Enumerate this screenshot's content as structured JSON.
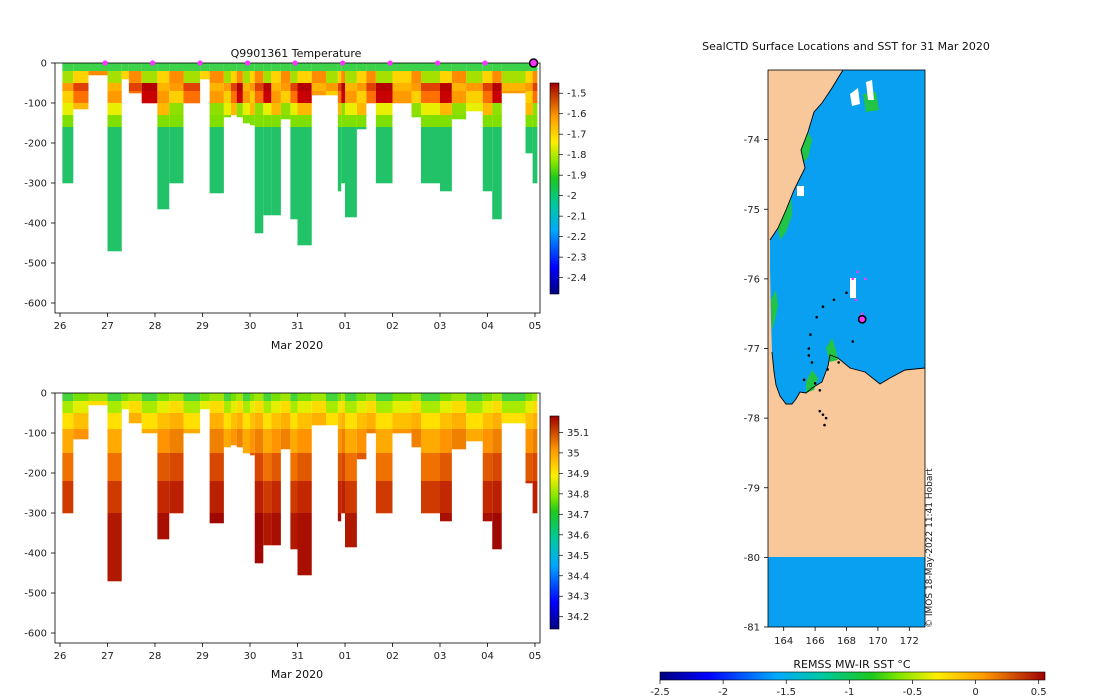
{
  "colors": {
    "land": "#f8c79a",
    "ocean": "#0aa0f2",
    "marker_magenta": "#ff33ff",
    "axis": "#000000"
  },
  "chart_data": [
    {
      "type": "heatmap",
      "title": "Q9901361  Temperature",
      "xlabel": "Mar 2020",
      "ylabel": "",
      "x_ticks": [
        "26",
        "27",
        "28",
        "29",
        "30",
        "31",
        "01",
        "02",
        "03",
        "04",
        "05"
      ],
      "y_ticks": [
        "0",
        "-100",
        "-200",
        "-300",
        "-400",
        "-500",
        "-600"
      ],
      "ylim": [
        -625,
        0
      ],
      "colorbar_ticks": [
        "-1.5",
        "-1.6",
        "-1.7",
        "-1.8",
        "-1.9",
        "-2",
        "-2.1",
        "-2.2",
        "-2.3",
        "-2.4"
      ],
      "colorbar_range": [
        -2.48,
        -1.45
      ],
      "profile_days": [
        0.05,
        0.28,
        0.6,
        1.0,
        1.3,
        1.45,
        1.72,
        2.05,
        2.3,
        2.6,
        2.95,
        3.15,
        3.45,
        3.6,
        3.72,
        3.85,
        4.0,
        4.1,
        4.28,
        4.45,
        4.65,
        4.85,
        5.0,
        5.3,
        5.6,
        5.85,
        5.92,
        6.0,
        6.25,
        6.45,
        6.65,
        7.0,
        7.4,
        7.6,
        8.0,
        8.25,
        8.55,
        8.9,
        9.1,
        9.3,
        9.8,
        9.95
      ],
      "profile_max_depths": [
        300,
        115,
        30,
        470,
        40,
        75,
        100,
        365,
        300,
        100,
        40,
        325,
        135,
        130,
        135,
        150,
        155,
        425,
        380,
        380,
        140,
        390,
        455,
        80,
        80,
        320,
        300,
        385,
        165,
        100,
        300,
        100,
        135,
        300,
        320,
        140,
        120,
        320,
        390,
        75,
        225,
        300
      ],
      "markers_x": [
        1,
        2,
        3,
        4,
        5,
        6,
        7,
        8,
        9,
        10
      ]
    },
    {
      "type": "heatmap",
      "title": "",
      "xlabel": "Mar 2020",
      "ylabel": "",
      "x_ticks": [
        "26",
        "27",
        "28",
        "29",
        "30",
        "31",
        "01",
        "02",
        "03",
        "04",
        "05"
      ],
      "y_ticks": [
        "0",
        "-100",
        "-200",
        "-300",
        "-400",
        "-500",
        "-600"
      ],
      "ylim": [
        -625,
        0
      ],
      "colorbar_ticks": [
        "35.1",
        "35",
        "34.9",
        "34.8",
        "34.7",
        "34.6",
        "34.5",
        "34.4",
        "34.3",
        "34.2"
      ],
      "colorbar_range": [
        34.14,
        35.18
      ]
    },
    {
      "type": "heatmap",
      "title": "SealCTD Surface Locations and SST for 31 Mar 2020",
      "xlabel": "REMSS MW-IR SST °C",
      "x_ticks": [
        "164",
        "166",
        "168",
        "170",
        "172"
      ],
      "y_ticks": [
        "-74",
        "-75",
        "-76",
        "-77",
        "-78",
        "-79",
        "-80",
        "-81"
      ],
      "xlim": [
        163,
        173
      ],
      "ylim": [
        -81,
        -73
      ],
      "colorbar_ticks": [
        "-2.5",
        "-2",
        "-1.5",
        "-1",
        "-0.5",
        "0",
        "0.5"
      ],
      "colorbar_range": [
        -2.5,
        0.55
      ],
      "credit": "© IMOS 18-May-2022 11:41 Hobart",
      "track": [
        [
          166.3,
          -77.9
        ],
        [
          166.5,
          -77.95
        ],
        [
          166.7,
          -78.0
        ],
        [
          166.6,
          -78.1
        ],
        [
          166.0,
          -77.5
        ],
        [
          165.3,
          -77.45
        ],
        [
          165.8,
          -77.2
        ],
        [
          165.6,
          -77.1
        ],
        [
          165.6,
          -77.0
        ],
        [
          165.7,
          -76.8
        ],
        [
          166.1,
          -76.55
        ],
        [
          166.5,
          -76.4
        ],
        [
          167.2,
          -76.3
        ],
        [
          168.0,
          -76.2
        ],
        [
          168.4,
          -76.0
        ],
        [
          168.7,
          -75.9
        ],
        [
          169.2,
          -76.0
        ],
        [
          168.6,
          -76.3
        ],
        [
          169.0,
          -76.5
        ],
        [
          168.4,
          -76.9
        ],
        [
          167.5,
          -77.2
        ],
        [
          166.8,
          -77.3
        ],
        [
          166.3,
          -77.6
        ]
      ],
      "last_position": [
        169.0,
        -76.58
      ]
    }
  ]
}
